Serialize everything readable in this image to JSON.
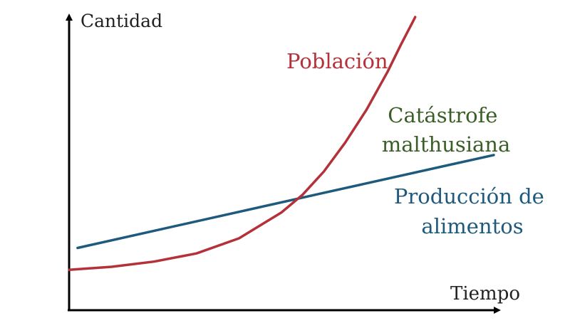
{
  "chart_data": {
    "type": "line",
    "title": "",
    "xlabel": "Tiempo",
    "ylabel": "Cantidad",
    "xlim": [
      0,
      10
    ],
    "ylim": [
      0,
      10
    ],
    "grid": false,
    "series": [
      {
        "name": "Población",
        "color": "#b5313a",
        "x": [
          0,
          1,
          2,
          3,
          4,
          5,
          5.5,
          6,
          6.5,
          7,
          7.5,
          7.8,
          8,
          8.1,
          8.15
        ],
        "y": [
          0.75,
          0.86,
          1.05,
          1.35,
          1.9,
          2.85,
          3.5,
          4.35,
          5.4,
          6.6,
          8.0,
          8.95,
          9.55,
          9.85,
          10.0
        ]
      },
      {
        "name": "Producción de alimentos",
        "color": "#1d5a7c",
        "x": [
          0.2,
          5.95,
          10.0
        ],
        "y": [
          1.55,
          3.55,
          4.95
        ]
      }
    ],
    "annotations": [
      {
        "text_lines": [
          "Catástrofe",
          "malthusiana"
        ],
        "color": "#3a5f26"
      }
    ]
  }
}
